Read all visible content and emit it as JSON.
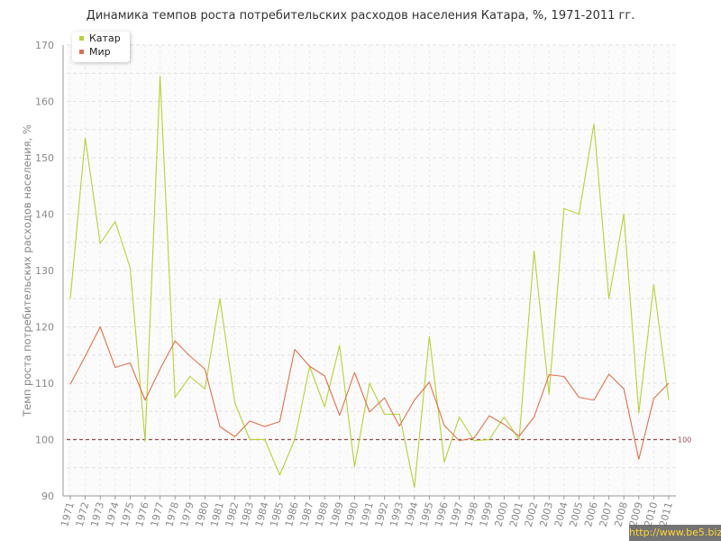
{
  "chart_data": {
    "type": "line",
    "title": "Динамика темпов роста потребительских расходов населения Катара, %, 1971-2011 гг.",
    "xlabel": "",
    "ylabel": "Темп роста потребительских расходов населения, %",
    "ylim": [
      90,
      170
    ],
    "yticks": [
      90,
      100,
      110,
      120,
      130,
      140,
      150,
      160,
      170
    ],
    "grid": true,
    "legend_position": "top-left",
    "reference_line": {
      "value": 100,
      "label": "100",
      "color": "#9b4a4a"
    },
    "x": [
      "1971",
      "1972",
      "1973",
      "1974",
      "1975",
      "1976",
      "1977",
      "1978",
      "1979",
      "1980",
      "1981",
      "1982",
      "1983",
      "1984",
      "1985",
      "1986",
      "1987",
      "1988",
      "1989",
      "1990",
      "1991",
      "1992",
      "1993",
      "1994",
      "1995",
      "1996",
      "1997",
      "1998",
      "1999",
      "2000",
      "2001",
      "2002",
      "2003",
      "2004",
      "2005",
      "2006",
      "2007",
      "2008",
      "2009",
      "2010",
      "2011"
    ],
    "series": [
      {
        "name": "Катар",
        "color": "#b5d334",
        "values": [
          125.0,
          153.5,
          134.8,
          138.7,
          130.5,
          99.7,
          164.5,
          107.5,
          111.2,
          109.0,
          125.0,
          106.5,
          100.0,
          100.0,
          93.7,
          100.0,
          113.0,
          105.8,
          116.7,
          95.2,
          110.0,
          104.5,
          104.5,
          91.5,
          118.3,
          96.0,
          104.0,
          99.8,
          100.0,
          104.0,
          100.0,
          133.5,
          108.0,
          141.0,
          140.0,
          156.0,
          125.0,
          140.0,
          104.7,
          127.5,
          107.0
        ]
      },
      {
        "name": "Мир",
        "color": "#e0704a",
        "values": [
          109.8,
          114.8,
          120.0,
          112.8,
          113.6,
          107.0,
          112.5,
          117.5,
          114.8,
          112.5,
          102.3,
          100.5,
          103.3,
          102.3,
          103.2,
          116.0,
          113.0,
          111.3,
          104.3,
          111.9,
          104.9,
          107.4,
          102.4,
          107.0,
          110.2,
          102.5,
          99.8,
          100.3,
          104.2,
          102.7,
          100.6,
          104.0,
          111.5,
          111.2,
          107.5,
          107.0,
          111.6,
          109.0,
          96.5,
          107.3,
          110.0
        ]
      }
    ]
  },
  "watermark": "http://www.be5.biz/"
}
